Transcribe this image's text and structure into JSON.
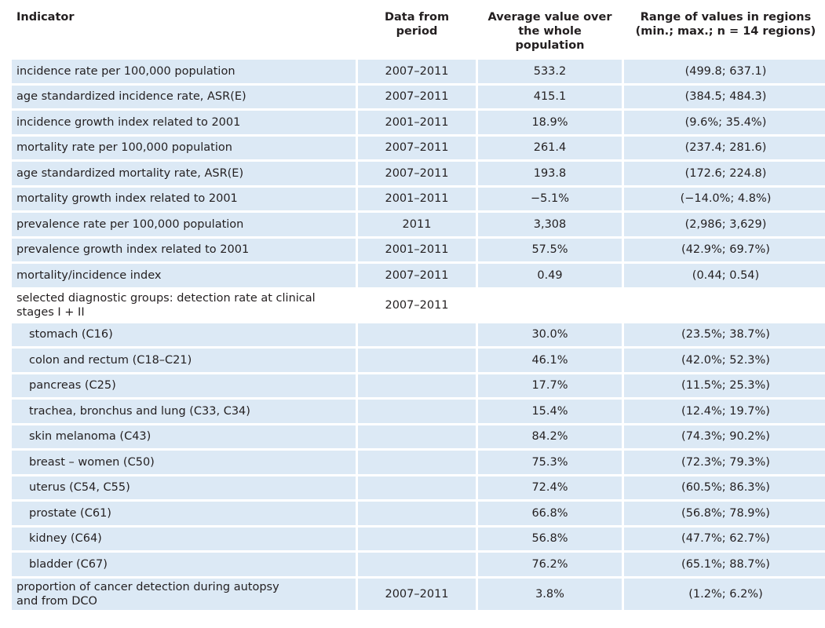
{
  "header": {
    "indicator": "Indicator",
    "period_line1": "Data from",
    "period_line2": "period",
    "avg_line1": "Average value over",
    "avg_line2": "the whole population",
    "range_line1": "Range of values in regions",
    "range_line2": "(min.; max.; n = 14 regions)"
  },
  "rows": [
    {
      "indicator": "incidence rate per 100,000 population",
      "period": "2007–2011",
      "average": "533.2",
      "range": "(499.8; 637.1)"
    },
    {
      "indicator": "age standardized incidence rate, ASR(E)",
      "period": "2007–2011",
      "average": "415.1",
      "range": "(384.5; 484.3)"
    },
    {
      "indicator": "incidence growth index related to 2001",
      "period": "2001–2011",
      "average": "18.9%",
      "range": "(9.6%; 35.4%)"
    },
    {
      "indicator": "mortality rate per 100,000 population",
      "period": "2007–2011",
      "average": "261.4",
      "range": "(237.4; 281.6)"
    },
    {
      "indicator": "age standardized mortality rate, ASR(E)",
      "period": "2007–2011",
      "average": "193.8",
      "range": "(172.6; 224.8)"
    },
    {
      "indicator": "mortality growth index related to 2001",
      "period": "2001–2011",
      "average": "−5.1%",
      "range": "(−14.0%; 4.8%)"
    },
    {
      "indicator": "prevalence rate per 100,000 population",
      "period": "2011",
      "average": "3,308",
      "range": "(2,986; 3,629)"
    },
    {
      "indicator": "prevalence growth index related to 2001",
      "period": "2001–2011",
      "average": "57.5%",
      "range": "(42.9%; 69.7%)"
    },
    {
      "indicator": "mortality/incidence index",
      "period": "2007–2011",
      "average": "0.49",
      "range": "(0.44; 0.54)"
    },
    {
      "indicator_line1": "selected diagnostic groups: detection rate at clinical",
      "indicator_line2": "stages I + II",
      "period": "2007–2011"
    },
    {
      "indicator": "stomach (C16)",
      "period": "",
      "average": "30.0%",
      "range": "(23.5%; 38.7%)"
    },
    {
      "indicator": "colon and rectum (C18–C21)",
      "period": "",
      "average": "46.1%",
      "range": "(42.0%; 52.3%)"
    },
    {
      "indicator": "pancreas (C25)",
      "period": "",
      "average": "17.7%",
      "range": "(11.5%; 25.3%)"
    },
    {
      "indicator": "trachea, bronchus and lung (C33, C34)",
      "period": "",
      "average": "15.4%",
      "range": "(12.4%; 19.7%)"
    },
    {
      "indicator": "skin melanoma (C43)",
      "period": "",
      "average": "84.2%",
      "range": "(74.3%; 90.2%)"
    },
    {
      "indicator": "breast – women (C50)",
      "period": "",
      "average": "75.3%",
      "range": "(72.3%; 79.3%)"
    },
    {
      "indicator": "uterus (C54, C55)",
      "period": "",
      "average": "72.4%",
      "range": "(60.5%; 86.3%)"
    },
    {
      "indicator": "prostate (C61)",
      "period": "",
      "average": "66.8%",
      "range": "(56.8%; 78.9%)"
    },
    {
      "indicator": "kidney (C64)",
      "period": "",
      "average": "56.8%",
      "range": "(47.7%; 62.7%)"
    },
    {
      "indicator": "bladder (C67)",
      "period": "",
      "average": "76.2%",
      "range": "(65.1%; 88.7%)"
    },
    {
      "indicator_line1": "proportion of cancer detection during autopsy",
      "indicator_line2": "and from DCO",
      "period": "2007–2011",
      "average": "3.8%",
      "range": "(1.2%; 6.2%)"
    }
  ],
  "colors": {
    "row_fill": "#dce9f5",
    "text": "#231f20"
  }
}
